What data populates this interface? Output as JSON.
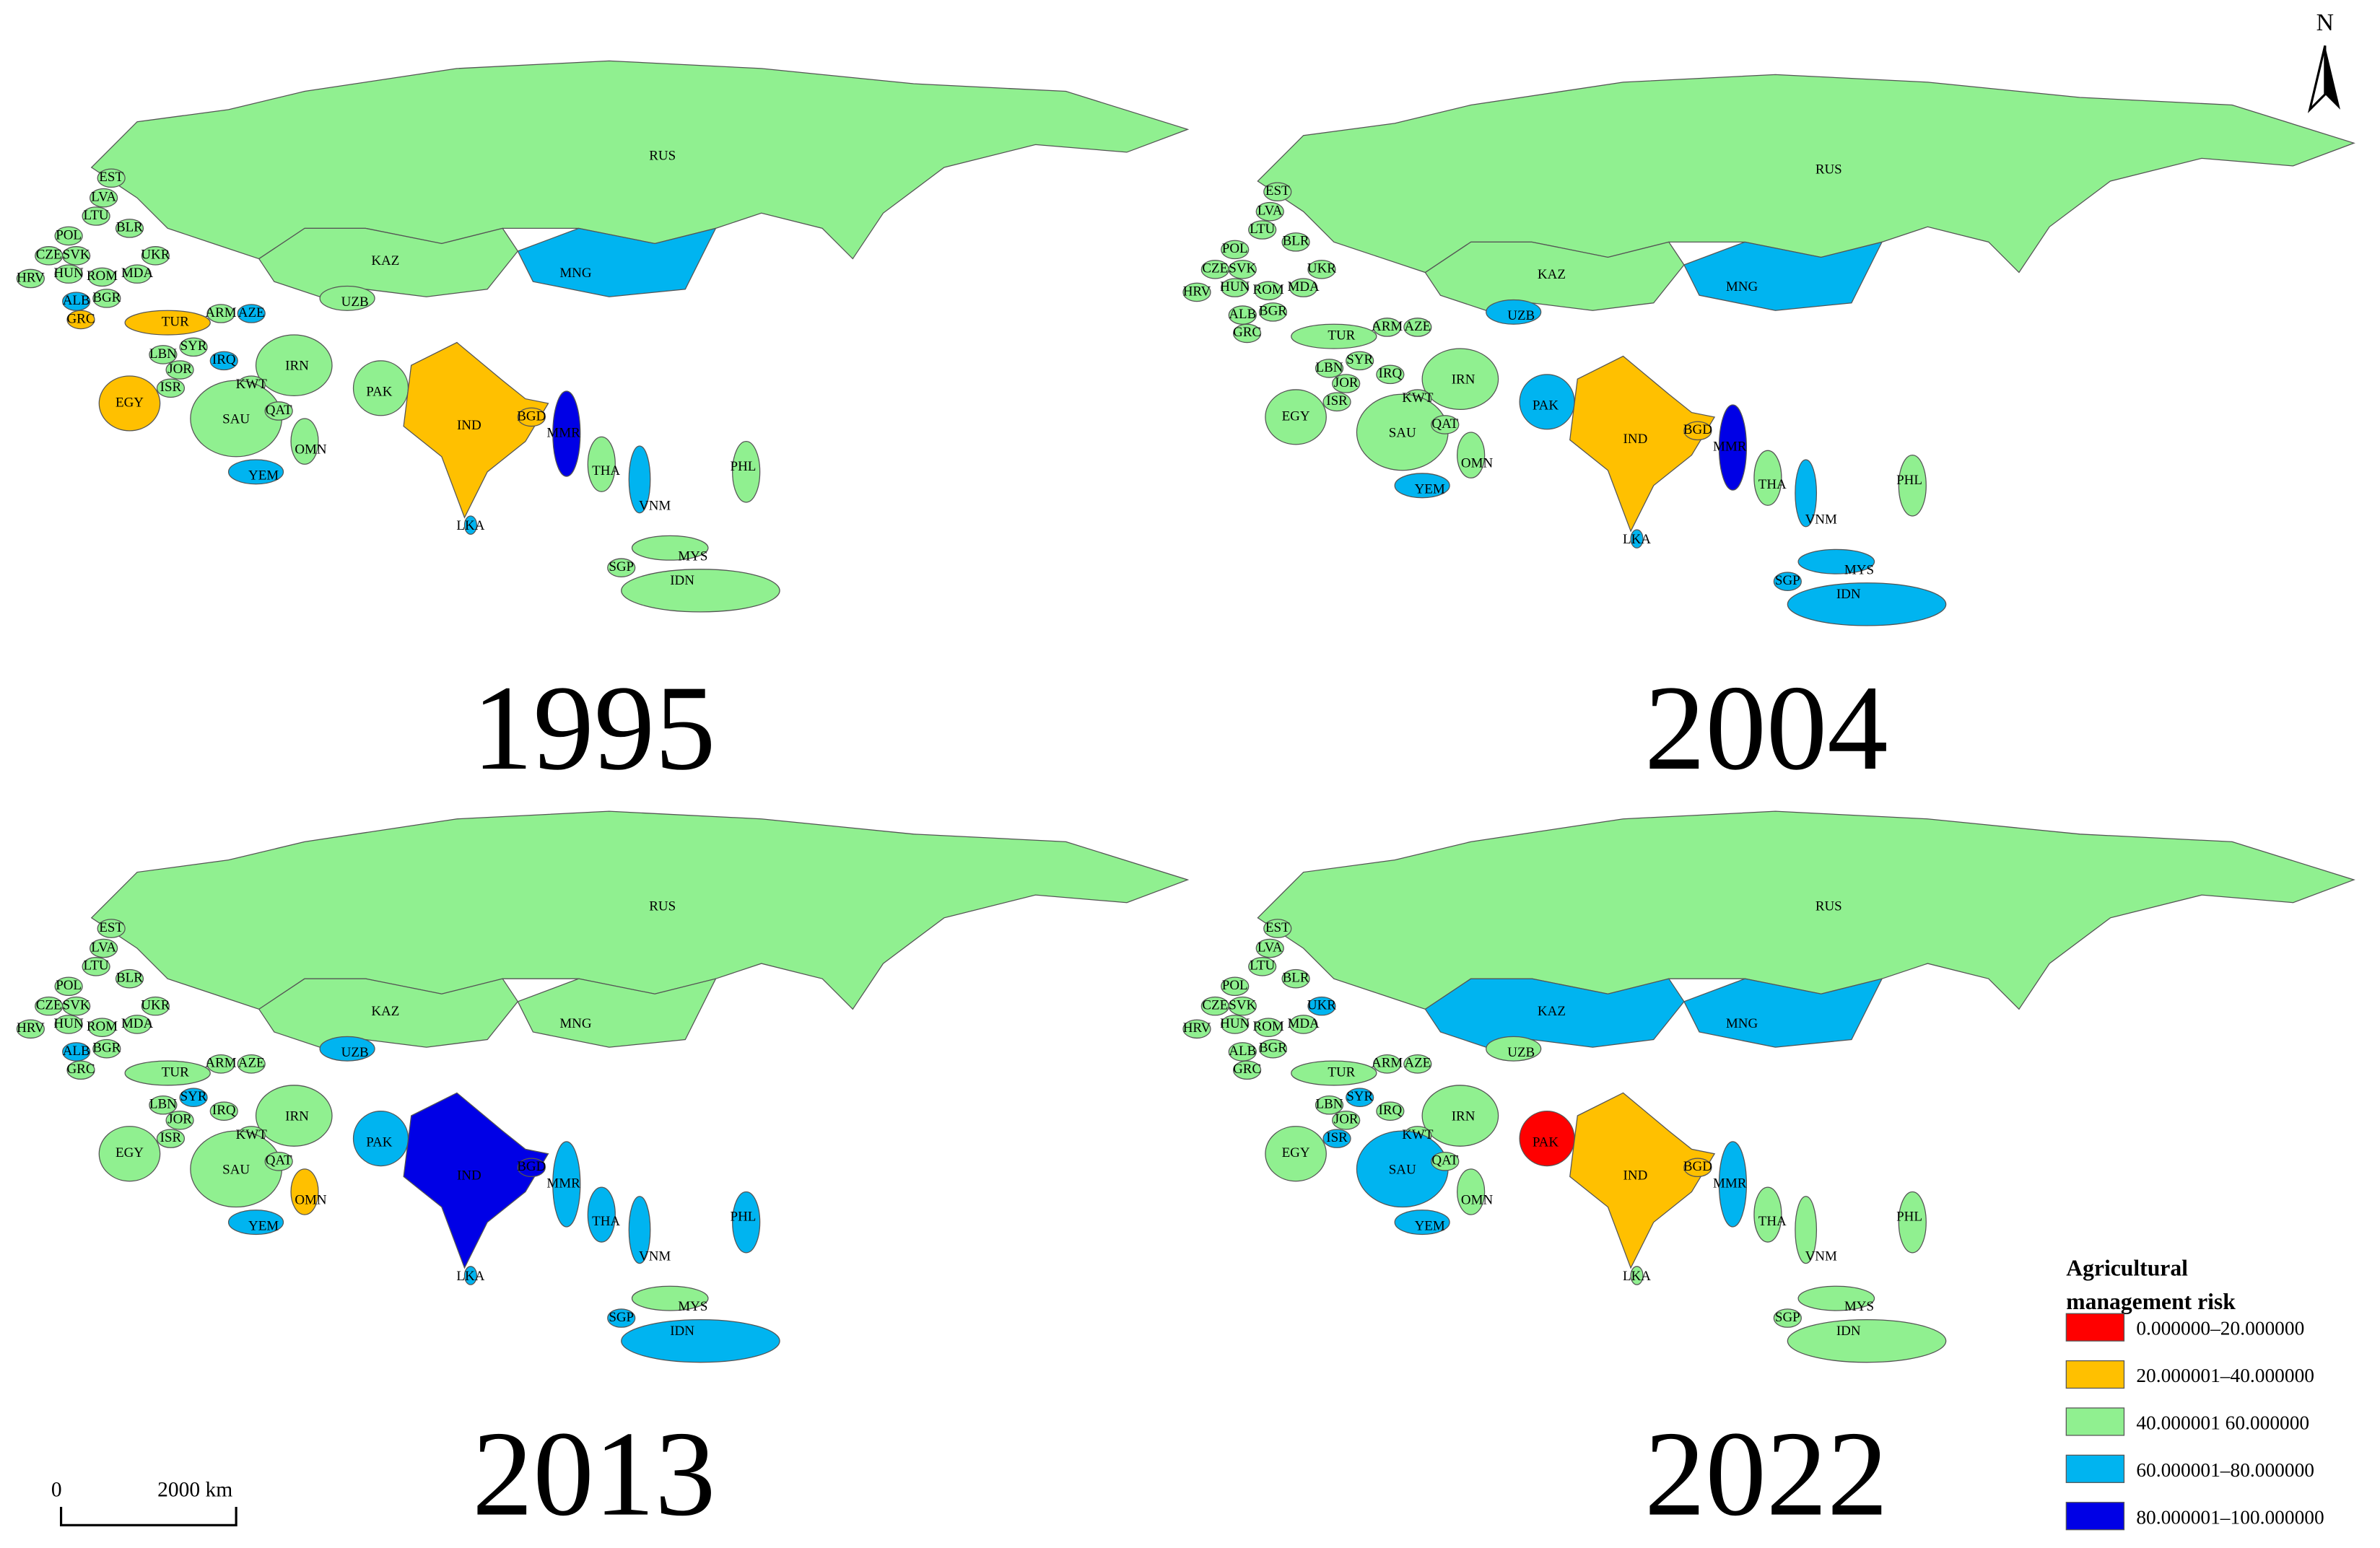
{
  "countries": [
    "RUS",
    "KAZ",
    "MNG",
    "UZB",
    "EST",
    "LVA",
    "LTU",
    "BLR",
    "POL",
    "CZE",
    "SVK",
    "UKR",
    "HUN",
    "ROM",
    "MDA",
    "HRV",
    "ALB",
    "BGR",
    "GRC",
    "TUR",
    "ARM",
    "AZE",
    "SYR",
    "LBN",
    "JOR",
    "ISR",
    "IRQ",
    "IRN",
    "KWT",
    "EGY",
    "SAU",
    "QAT",
    "OMN",
    "YEM",
    "PAK",
    "IND",
    "BGD",
    "LKA",
    "MMR",
    "THA",
    "VNM",
    "PHL",
    "MYS",
    "SGP",
    "IDN"
  ],
  "panels": [
    {
      "year": "1995",
      "risk_class": [
        2,
        2,
        3,
        2,
        2,
        2,
        2,
        2,
        2,
        2,
        2,
        2,
        2,
        2,
        2,
        2,
        3,
        2,
        1,
        1,
        2,
        3,
        2,
        2,
        2,
        2,
        3,
        2,
        2,
        1,
        2,
        2,
        2,
        3,
        2,
        1,
        1,
        3,
        4,
        2,
        3,
        2,
        2,
        2,
        2
      ]
    },
    {
      "year": "2004",
      "risk_class": [
        2,
        2,
        3,
        3,
        2,
        2,
        2,
        2,
        2,
        2,
        2,
        2,
        2,
        2,
        2,
        2,
        2,
        2,
        2,
        2,
        2,
        2,
        2,
        2,
        2,
        2,
        2,
        2,
        2,
        2,
        2,
        2,
        2,
        3,
        3,
        1,
        1,
        3,
        4,
        2,
        3,
        2,
        3,
        3,
        3
      ]
    },
    {
      "year": "2013",
      "risk_class": [
        2,
        2,
        2,
        3,
        2,
        2,
        2,
        2,
        2,
        2,
        2,
        2,
        2,
        2,
        2,
        2,
        3,
        2,
        2,
        2,
        2,
        2,
        3,
        2,
        2,
        2,
        2,
        2,
        2,
        2,
        2,
        2,
        1,
        3,
        3,
        4,
        4,
        3,
        3,
        3,
        3,
        3,
        2,
        3,
        3
      ]
    },
    {
      "year": "2022",
      "risk_class": [
        2,
        3,
        3,
        2,
        2,
        2,
        2,
        2,
        2,
        2,
        2,
        3,
        2,
        2,
        2,
        2,
        2,
        2,
        2,
        2,
        2,
        2,
        3,
        2,
        2,
        3,
        2,
        2,
        2,
        2,
        3,
        2,
        2,
        3,
        0,
        1,
        1,
        2,
        3,
        2,
        2,
        2,
        2,
        2,
        2
      ]
    }
  ],
  "legend": {
    "title_lines": [
      "Agricultural",
      "management risk"
    ],
    "classes": [
      {
        "label": "0.000000–20.000000",
        "color": "#ff0000"
      },
      {
        "label": "20.000001–40.000000",
        "color": "#ffc000"
      },
      {
        "label": "40.000001  60.000000",
        "color": "#90f090"
      },
      {
        "label": "60.000001–80.000000",
        "color": "#00b4f0"
      },
      {
        "label": "80.000001–100.000000",
        "color": "#0000e6"
      }
    ]
  },
  "scale_bar": {
    "start": "0",
    "end": "2000 km"
  },
  "north": "N"
}
